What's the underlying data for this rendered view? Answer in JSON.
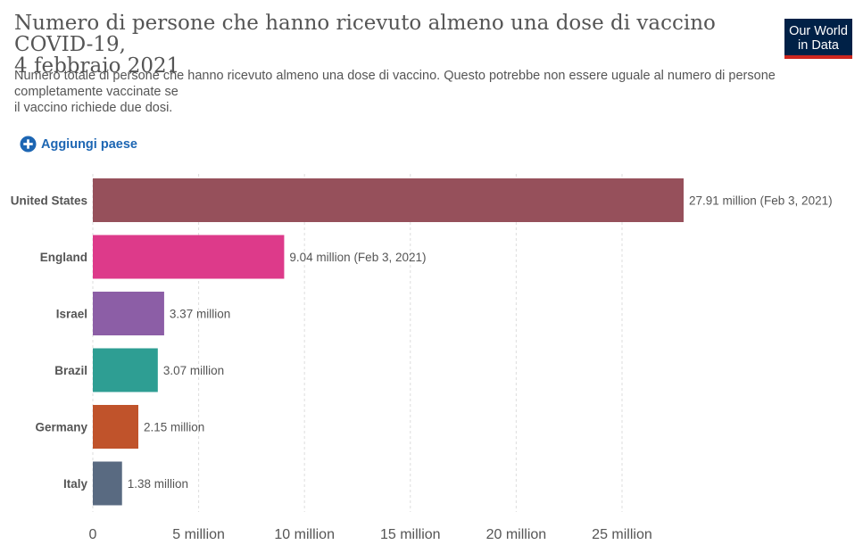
{
  "header": {
    "title_line1": "Numero di persone che hanno ricevuto almeno una dose di vaccino COVID-19,",
    "title_line2": "4 febbraio 2021",
    "subtitle_line1": "Numero totale di persone che hanno ricevuto almeno una dose di vaccino. Questo potrebbe non essere uguale al numero di persone",
    "subtitle_line2": "completamente vaccinate se",
    "subtitle_line3": "il vaccino richiede due dosi.",
    "logo_line1": "Our World",
    "logo_line2": "in Data"
  },
  "controls": {
    "add_country_label": "Aggiungi paese",
    "add_icon": "plus-circle-icon"
  },
  "chart_data": {
    "type": "bar",
    "orientation": "horizontal",
    "categories": [
      "United States",
      "England",
      "Israel",
      "Brazil",
      "Germany",
      "Italy"
    ],
    "values": [
      27.91,
      9.04,
      3.37,
      3.07,
      2.15,
      1.38
    ],
    "value_labels": [
      "27.91 million (Feb 3, 2021)",
      "9.04 million (Feb 3, 2021)",
      "3.37 million",
      "3.07 million",
      "2.15 million",
      "1.38 million"
    ],
    "colors": [
      "#96505b",
      "#dd3a8a",
      "#8c5ea6",
      "#2e9e93",
      "#c0532b",
      "#596a81"
    ],
    "xticks": [
      0,
      5,
      10,
      15,
      20,
      25
    ],
    "xtick_labels": [
      "0",
      "5 million",
      "10 million",
      "15 million",
      "20 million",
      "25 million"
    ],
    "xlim": [
      0,
      28
    ],
    "grid": true,
    "value_unit": "million"
  }
}
